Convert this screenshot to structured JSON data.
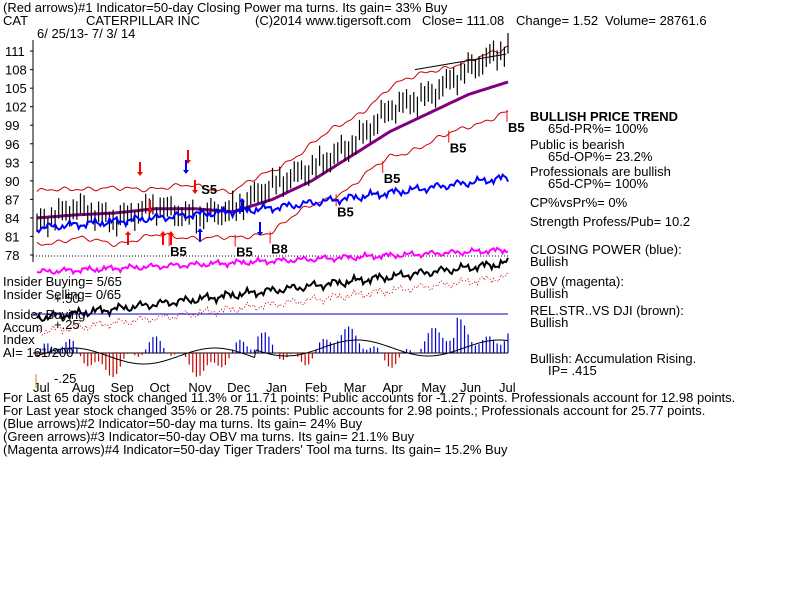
{
  "header": {
    "line1": "(Red arrows)#1 Indicator=50-day Closing Power ma turns. Its gain= 33% Buy",
    "ticker": "CAT",
    "company": "CATERPILLAR INC",
    "copyright": "(C)2014 www.tigersoft.com",
    "close": "Close=  111.08",
    "change": "Change= 1.52",
    "volume": "Volume= 28761.6",
    "daterange": "6/ 25/13- 7/ 3/ 14"
  },
  "right_panel": [
    "BULLISH PRICE TREND",
    "65d-PR%= 100%",
    "Public is bearish",
    "65d-OP%= 23.2%",
    "Professionals are bullish",
    "65d-CP%= 100%",
    "CP%vsPr%=  0%",
    "Strength Profess/Pub= 10.2",
    "CLOSING POWER (blue):",
    "Bullish",
    "OBV (magenta):",
    "Bullish",
    "REL.STR..VS DJI (brown):",
    "Bullish",
    "Bullish: Accumulation Rising.",
    "IP=  .415"
  ],
  "left_labels": {
    "insider_buying": "Insider Buying= 5/65",
    "insider_selling": "Insider Selling= 0/65",
    "insider_buying2": "Insider Buying",
    "accum": "Accum",
    "index": "Index",
    "ai": "AI= 161/200",
    "plus50": "+.50",
    "plus25": "+.25",
    "minus25": "-.25"
  },
  "footer": [
    "For Last 65 days stock changed  11.3% or  11.71 points:  Public accounts for -1.27 points.   Professionals account for  12.98 points.",
    "For Last year stock changed  35% or  28.75 points:  Public accounts for  2.98 points.;  Professionals account for  25.77 points.",
    "(Blue arrows)#2 Indicator=50-day ma turns. Its gain= 24% Buy",
    "(Green arrows)#3 Indicator=50-day OBV ma turns. Its gain= 21.1% Buy",
    "(Magenta arrows)#4 Indicator=50-day Tiger Traders' Tool ma turns. Its gain= 15.2% Buy"
  ],
  "colors": {
    "price": "#000000",
    "band": "#cc0000",
    "ma": "#800080",
    "closing_power": "#0000ff",
    "obv": "#ff00ff",
    "relstr": "#8b4513",
    "accum": "#0000cc",
    "arrow_red": "#ff0000",
    "arrow_blue": "#0000ff"
  },
  "chart_data": {
    "type": "line",
    "title": "CATERPILLAR INC",
    "x_categories": [
      "Jul",
      "Aug",
      "Sep",
      "Oct",
      "Nov",
      "Dec",
      "Jan",
      "Feb",
      "Mar",
      "Apr",
      "May",
      "Jun",
      "Jul"
    ],
    "y_ticks": [
      78,
      81,
      84,
      87,
      90,
      93,
      96,
      99,
      102,
      105,
      108,
      111
    ],
    "ylim": [
      78,
      112
    ],
    "price_close_by_month": [
      83,
      86,
      84,
      86,
      84,
      85,
      89,
      92,
      96,
      102,
      104,
      108,
      111.08
    ],
    "ma50_by_month": [
      84,
      84.5,
      84.8,
      85.5,
      85.5,
      85,
      87,
      90,
      94,
      98,
      101,
      104,
      106
    ],
    "upper_band_by_month": [
      88,
      89,
      88.5,
      89,
      89,
      88.5,
      91.5,
      96,
      100,
      105,
      108,
      109,
      112
    ],
    "lower_band_by_month": [
      80,
      80.5,
      80,
      81,
      81,
      80.5,
      82,
      86,
      89,
      94,
      96,
      99,
      101
    ],
    "signals": [
      {
        "label": "S5",
        "month_index": 4.1
      },
      {
        "label": "B5",
        "month_index": 3.3
      },
      {
        "label": "B5",
        "month_index": 5.0
      },
      {
        "label": "B8",
        "month_index": 5.9
      },
      {
        "label": "B5",
        "month_index": 7.6
      },
      {
        "label": "B5",
        "month_index": 8.8
      },
      {
        "label": "B5",
        "month_index": 10.5
      },
      {
        "label": "B5",
        "month_index": 12.0
      }
    ]
  }
}
